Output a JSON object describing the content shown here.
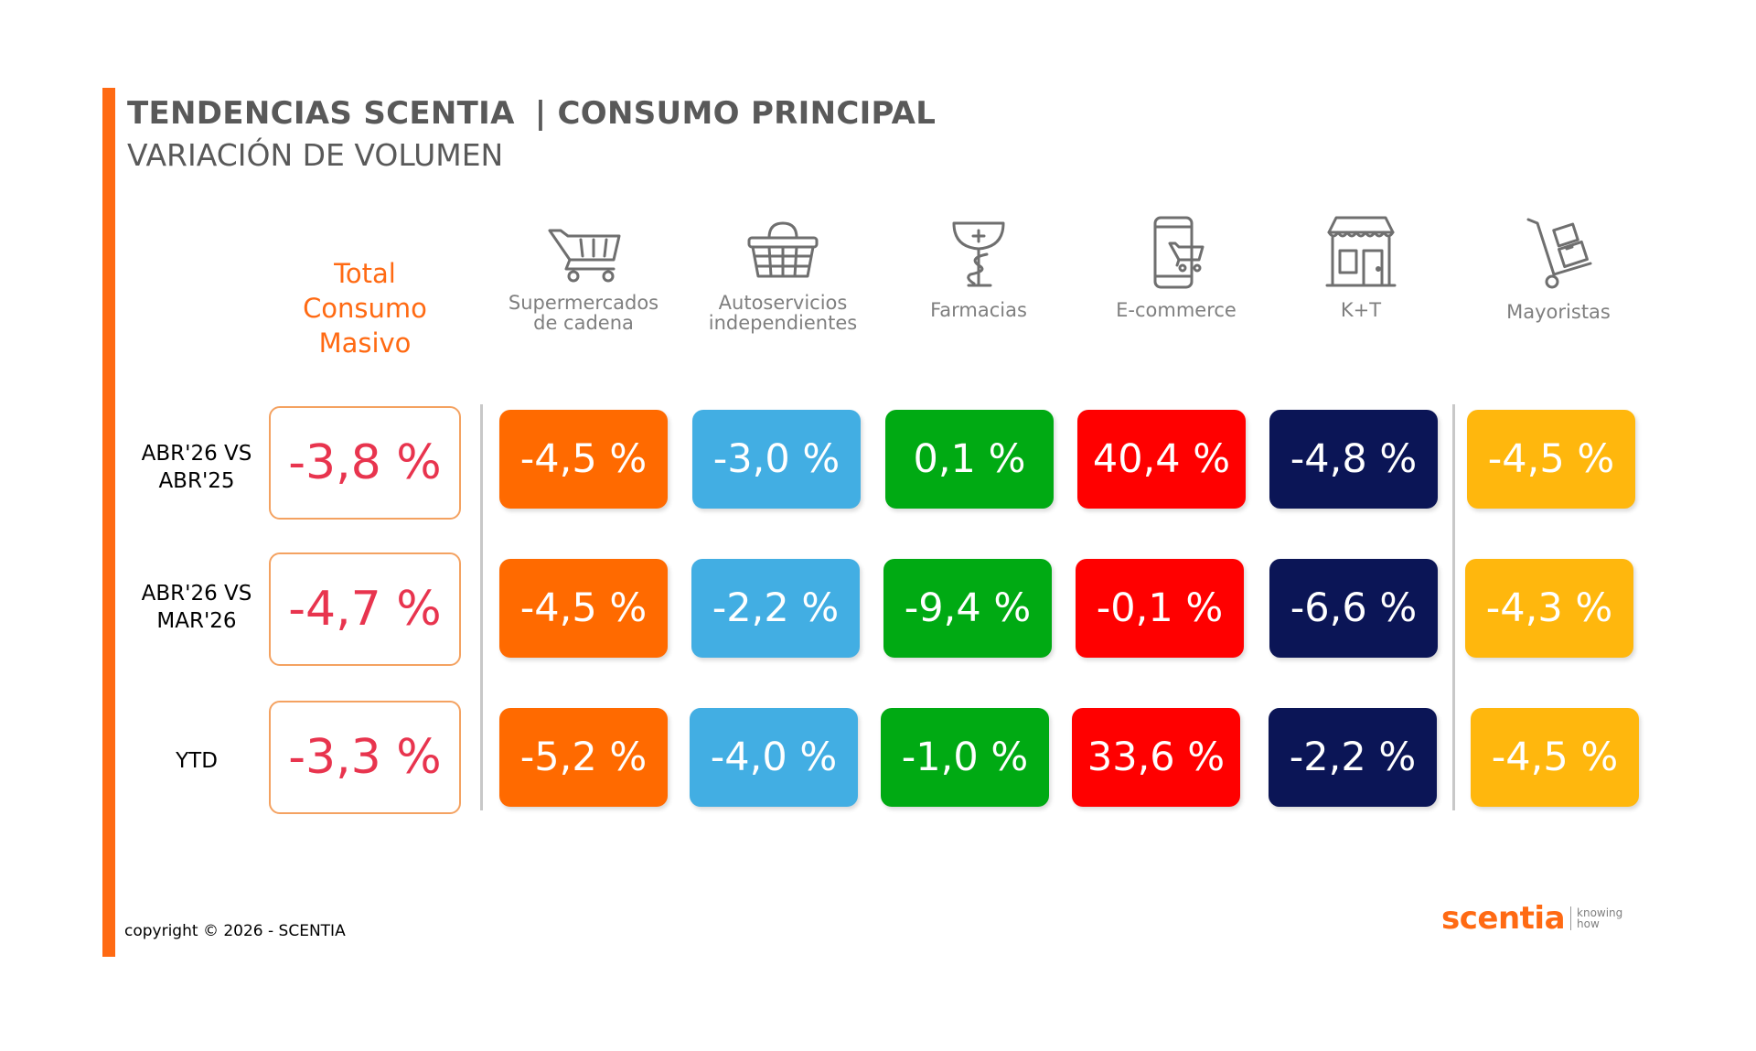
{
  "header": {
    "title": "TENDENCIAS SCENTIA",
    "title_right": "| CONSUMO PRINCIPAL",
    "subtitle": "VARIACIÓN DE VOLUMEN"
  },
  "total_header": {
    "line1": "Total",
    "line2": "Consumo",
    "line3": "Masivo"
  },
  "categories": [
    {
      "line1": "Supermercados",
      "line2": "de cadena",
      "icon": "shopping-cart-icon",
      "color": "#FF6A00"
    },
    {
      "line1": "Autoservicios",
      "line2": "independientes",
      "icon": "shopping-basket-icon",
      "color": "#42AEE3"
    },
    {
      "line1": "Farmacias",
      "line2": "",
      "icon": "pharmacy-icon",
      "color": "#00AA13"
    },
    {
      "line1": "E-commerce",
      "line2": "",
      "icon": "mobile-cart-icon",
      "color": "#FF0000"
    },
    {
      "line1": "K+T",
      "line2": "",
      "icon": "store-icon",
      "color": "#0B1556"
    },
    {
      "line1": "Mayoristas",
      "line2": "",
      "icon": "hand-truck-icon",
      "color": "#FFB70D"
    }
  ],
  "rows": [
    {
      "line1": "ABR'26 VS",
      "line2": "ABR'25",
      "total": "-3,8 %",
      "values": [
        "-4,5 %",
        "-3,0 %",
        "0,1 %",
        "40,4 %",
        "-4,8 %",
        "-4,5 %"
      ]
    },
    {
      "line1": "ABR'26 VS",
      "line2": "MAR'26",
      "total": "-4,7 %",
      "values": [
        "-4,5 %",
        "-2,2 %",
        "-9,4 %",
        "-0,1 %",
        "-6,6 %",
        "-4,3 %"
      ]
    },
    {
      "line1": "YTD",
      "line2": "",
      "total": "-3,3 %",
      "values": [
        "-5,2 %",
        "-4,0 %",
        "-1,0 %",
        "33,6 %",
        "-2,2 %",
        "-4,5 %"
      ]
    }
  ],
  "footer": {
    "copyright": "copyright © 2026 - SCENTIA",
    "logo_brand": "scentia",
    "logo_tag1": "knowing",
    "logo_tag2": "how"
  }
}
